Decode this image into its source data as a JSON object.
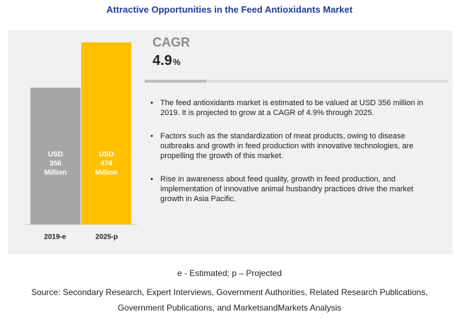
{
  "title": "Attractive Opportunities in the Feed Antioxidants Market",
  "cagr": {
    "label": "CAGR",
    "value": "4.9",
    "unit": "%"
  },
  "bullets": [
    "The feed antioxidants market is estimated to be valued at USD 356 million in 2019. It is projected to grow at a CAGR of 4.9% through 2025.",
    "Factors such as the standardization of meat products, owing to disease outbreaks and growth in feed production with innovative technologies, are propelling the growth of this market.",
    "Rise in awareness about feed quality, growth in feed production, and implementation of innovative animal husbandry practices drive the market growth in Asia Pacific."
  ],
  "bullet_glyph": "•",
  "footnote": "e - Estimated; p – Projected",
  "source_lines": [
    "Source: Secondary Research, Expert Interviews, Government Authorities, Related Research Publications,",
    "Government Publications, and MarketsandMarkets Analysis"
  ],
  "chart_data": {
    "type": "bar",
    "categories": [
      "2019-e",
      "2025-p"
    ],
    "values": [
      356,
      474
    ],
    "data_labels": [
      [
        "USD",
        "356",
        "Million"
      ],
      [
        "USD",
        "474",
        "Million"
      ]
    ],
    "unit": "USD Million",
    "colors": [
      "#a6a6a6",
      "#ffc000"
    ],
    "label_color": "#ffffff",
    "ylim": [
      0,
      474
    ],
    "grid": false,
    "legend": "none"
  }
}
